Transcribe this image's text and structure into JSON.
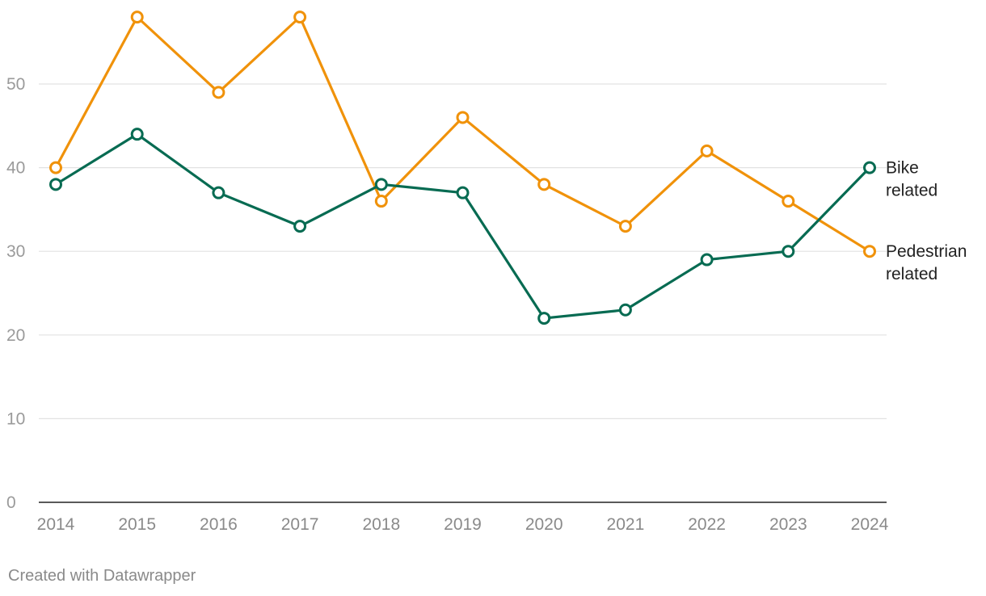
{
  "chart_data": {
    "type": "line",
    "title": "",
    "xlabel": "",
    "ylabel": "",
    "x": [
      "2014",
      "2015",
      "2016",
      "2017",
      "2018",
      "2019",
      "2020",
      "2021",
      "2022",
      "2023",
      "2024"
    ],
    "ylim": [
      0,
      60
    ],
    "yticks": [
      0,
      10,
      20,
      30,
      40,
      50
    ],
    "grid": true,
    "legend": "inline-right",
    "series": [
      {
        "name": "Pedestrian related",
        "label_lines": [
          "Pedestrian",
          "related"
        ],
        "color": "#f0920a",
        "values": [
          40,
          58,
          49,
          58,
          36,
          46,
          38,
          33,
          42,
          36,
          30
        ]
      },
      {
        "name": "Bike related",
        "label_lines": [
          "Bike",
          "related"
        ],
        "color": "#076b52",
        "values": [
          38,
          44,
          37,
          33,
          38,
          37,
          22,
          23,
          29,
          30,
          40
        ]
      }
    ]
  },
  "footer": {
    "credit": "Created with Datawrapper"
  }
}
